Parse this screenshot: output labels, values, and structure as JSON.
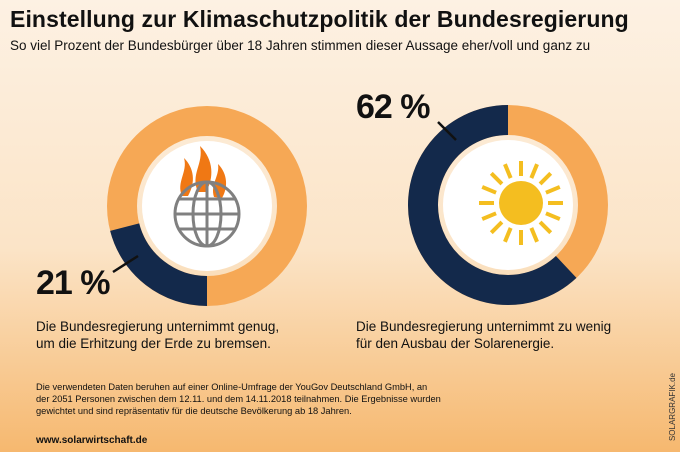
{
  "title": "Einstellung zur Klimaschutzpolitik der Bundesregierung",
  "subtitle": "So viel Prozent der Bundesbürger über 18 Jahren stimmen dieser Aussage eher/voll und ganz zu",
  "colors": {
    "agree": "#13294b",
    "remainder": "#f6a855",
    "inner_circle": "#ffffff",
    "globe": "#808080",
    "flames": "#f07814",
    "sun": "#f4be20"
  },
  "chart_data": [
    {
      "type": "pie",
      "variant": "donut",
      "value": 21,
      "remainder": 79,
      "label": "21 %",
      "caption": [
        "Die Bundesregierung unternimmt genug,",
        "um die Erhitzung der Erde zu bremsen."
      ],
      "icon": "burning-globe-icon"
    },
    {
      "type": "pie",
      "variant": "donut",
      "value": 62,
      "remainder": 38,
      "label": "62 %",
      "caption": [
        "Die Bundesregierung unternimmt zu wenig",
        "für den Ausbau der Solarenergie."
      ],
      "icon": "sun-icon"
    }
  ],
  "footnote": [
    "Die verwendeten Daten beruhen auf einer Online-Umfrage der YouGov Deutschland GmbH, an",
    "der 2051 Personen zwischen dem 12.11. und dem 14.11.2018 teilnahmen. Die Ergebnisse wurden",
    "gewichtet und sind repräsentativ für die deutsche Bevölkerung ab 18 Jahren."
  ],
  "website": "www.solarwirtschaft.de",
  "credit": "SOLARGRAFIK.de"
}
